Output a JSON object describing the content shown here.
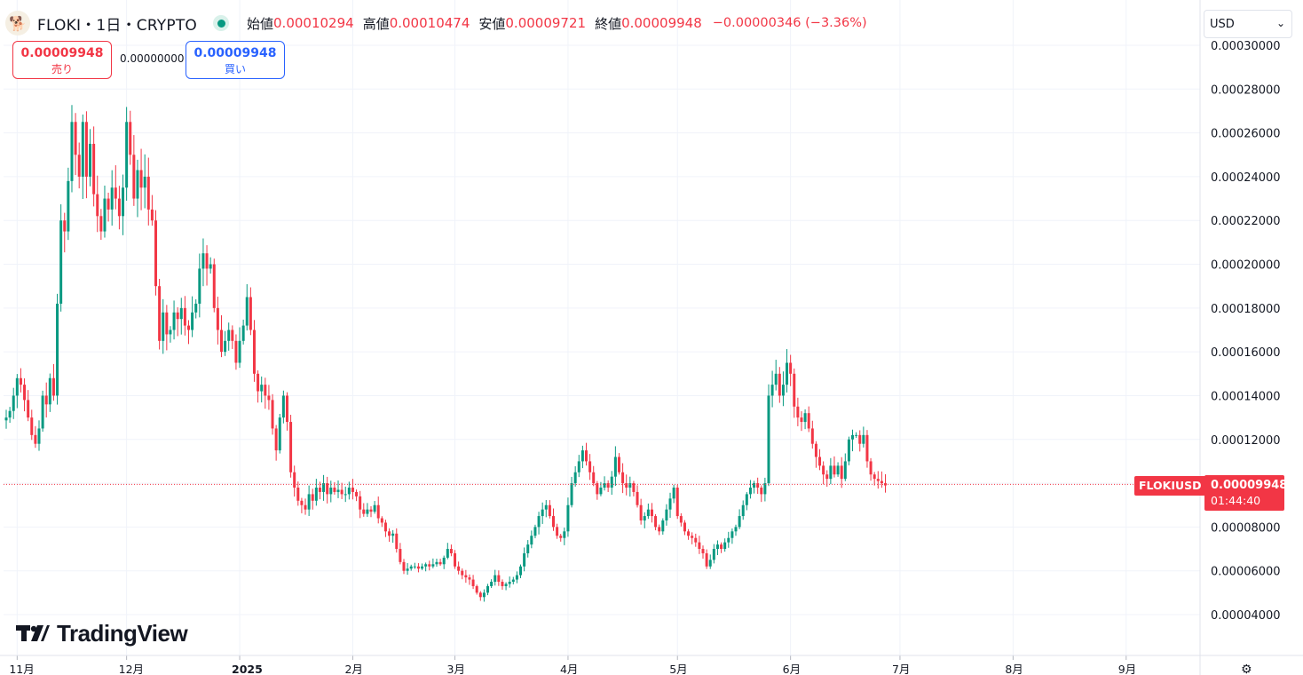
{
  "header": {
    "symbol": "FLOKI・1日・CRYPTO",
    "open_label": "始値",
    "open": "0.00010294",
    "high_label": "高値",
    "high": "0.00010474",
    "low_label": "安値",
    "low": "0.00009721",
    "close_label": "終値",
    "close": "0.00009948",
    "change": "−0.00000346 (−3.36%)"
  },
  "trade": {
    "sell_price": "0.00009948",
    "sell_label": "売り",
    "spread": "0.00000000",
    "buy_price": "0.00009948",
    "buy_label": "買い"
  },
  "currency": "USD",
  "brand": "TradingView",
  "last_price": {
    "symbol_tag": "FLOKIUSD",
    "value": "0.00009948",
    "countdown": "01:44:40"
  },
  "colors": {
    "up": "#089981",
    "down": "#f23645",
    "grid": "#f0f3fa",
    "axis_text": "#131722",
    "price_line": "#f23645"
  },
  "icons": {
    "logo": "floki-logo-icon",
    "status": "market-open-dot-icon",
    "settings": "gear-icon",
    "dropdown": "chevron-down-icon"
  },
  "chart_data": {
    "type": "candlestick",
    "y_ticks": [
      4e-05,
      6e-05,
      8e-05,
      0.0001,
      0.00012,
      0.00014,
      0.00016,
      0.00018,
      0.0002,
      0.00022,
      0.00024,
      0.00026,
      0.00028,
      0.0003
    ],
    "y_tick_labels": [
      "0.00004000",
      "0.00006000",
      "0.00008000",
      "0.00010000",
      "0.00012000",
      "0.00014000",
      "0.00016000",
      "0.00018000",
      "0.00020000",
      "0.00022000",
      "0.00024000",
      "0.00026000",
      "0.00028000",
      "0.00030000"
    ],
    "ylim": [
      3.02e-05,
      0.0003021
    ],
    "x_labels": [
      "11月",
      "12月",
      "2025",
      "2月",
      "3月",
      "4月",
      "5月",
      "6月",
      "7月",
      "8月",
      "9月"
    ],
    "x_label_dates": [
      "2024-11-01",
      "2024-12-01",
      "2025-01-01",
      "2025-02-01",
      "2025-03-01",
      "2025-04-01",
      "2025-05-01",
      "2025-06-01",
      "2025-07-01",
      "2025-08-01",
      "2025-09-01"
    ],
    "first_date": "2024-10-29",
    "last_price": 9.948e-05,
    "close": [
      0.00013,
      0.000133,
      0.00014,
      0.000148,
      0.000145,
      0.000138,
      0.00013,
      0.000122,
      0.000118,
      0.000125,
      0.00014,
      0.000136,
      0.000148,
      0.00014,
      0.000182,
      0.00022,
      0.000215,
      0.000238,
      0.000265,
      0.00025,
      0.00024,
      0.000265,
      0.00024,
      0.000255,
      0.000232,
      0.000222,
      0.000215,
      0.00023,
      0.000225,
      0.000235,
      0.00023,
      0.000222,
      0.000235,
      0.000265,
      0.00025,
      0.00023,
      0.000243,
      0.000235,
      0.00024,
      0.000225,
      0.00022,
      0.00019,
      0.000165,
      0.000178,
      0.000168,
      0.00017,
      0.000178,
      0.000175,
      0.00018,
      0.000172,
      0.00017,
      0.000178,
      0.000182,
      0.000198,
      0.000205,
      0.000198,
      0.0002,
      0.00018,
      0.00017,
      0.00016,
      0.000165,
      0.00017,
      0.000165,
      0.000155,
      0.000165,
      0.000172,
      0.000185,
      0.00017,
      0.00015,
      0.000142,
      0.000145,
      0.00014,
      0.000138,
      0.000125,
      0.000115,
      0.00013,
      0.00014,
      0.000128,
      0.000105,
      9.8e-05,
      9.2e-05,
      9e-05,
      8.8e-05,
      9.5e-05,
      9.2e-05,
      9.8e-05,
      9.6e-05,
      0.0001,
      9.5e-05,
      9.8e-05,
      9.6e-05,
      9.7e-05,
      9.5e-05,
      9.5e-05,
      9.8e-05,
      9.6e-05,
      9.4e-05,
      8.8e-05,
      8.6e-05,
      8.8e-05,
      8.7e-05,
      9e-05,
      8.4e-05,
      8.2e-05,
      7.8e-05,
      7.6e-05,
      7.7e-05,
      7e-05,
      6.4e-05,
      6e-05,
      6.1e-05,
      6.2e-05,
      6.2e-05,
      6.1e-05,
      6.2e-05,
      6.3e-05,
      6.2e-05,
      6.3e-05,
      6.4e-05,
      6.3e-05,
      6.6e-05,
      7e-05,
      6.8e-05,
      6.2e-05,
      6e-05,
      5.8e-05,
      5.7e-05,
      5.6e-05,
      5.3e-05,
      5e-05,
      4.8e-05,
      5e-05,
      5.3e-05,
      5.5e-05,
      5.8e-05,
      5.5e-05,
      5.3e-05,
      5.4e-05,
      5.5e-05,
      5.6e-05,
      5.8e-05,
      6.2e-05,
      6.8e-05,
      7.2e-05,
      7.6e-05,
      8e-05,
      8.5e-05,
      8.8e-05,
      9e-05,
      8.5e-05,
      8e-05,
      7.6e-05,
      7.5e-05,
      7.8e-05,
      9e-05,
      0.0001,
      0.000105,
      0.00011,
      0.000115,
      0.00011,
      0.000105,
      0.0001,
      9.5e-05,
      9.8e-05,
      0.0001,
      9.8e-05,
      0.000103,
      0.000112,
      0.000105,
      0.0001,
      9.8e-05,
      0.0001,
      9.6e-05,
      9e-05,
      8.3e-05,
      8.5e-05,
      8.8e-05,
      8.5e-05,
      8e-05,
      7.8e-05,
      8.3e-05,
      8.8e-05,
      9.3e-05,
      9.8e-05,
      8.5e-05,
      8.2e-05,
      7.8e-05,
      7.6e-05,
      7.5e-05,
      7.3e-05,
      7e-05,
      6.8e-05,
      6.2e-05,
      6.5e-05,
      7e-05,
      7.2e-05,
      7e-05,
      7.3e-05,
      7.5e-05,
      7.8e-05,
      8e-05,
      8.5e-05,
      9e-05,
      9.5e-05,
      9.8e-05,
      0.0001,
      9.8e-05,
      9.5e-05,
      0.0001,
      0.00014,
      0.000145,
      0.00015,
      0.00014,
      0.000145,
      0.000155,
      0.00015,
      0.000135,
      0.00013,
      0.000128,
      0.000132,
      0.000125,
      0.000118,
      0.000112,
      0.000108,
      0.000104,
      0.000102,
      0.000108,
      0.000104,
      0.000108,
      0.000102,
      0.00011,
      0.00012,
      0.000122,
      0.000122,
      0.000118,
      0.000122,
      0.00011,
      0.000104,
      0.000102,
      0.000101,
      0.0001,
      9.9e-05
    ]
  }
}
